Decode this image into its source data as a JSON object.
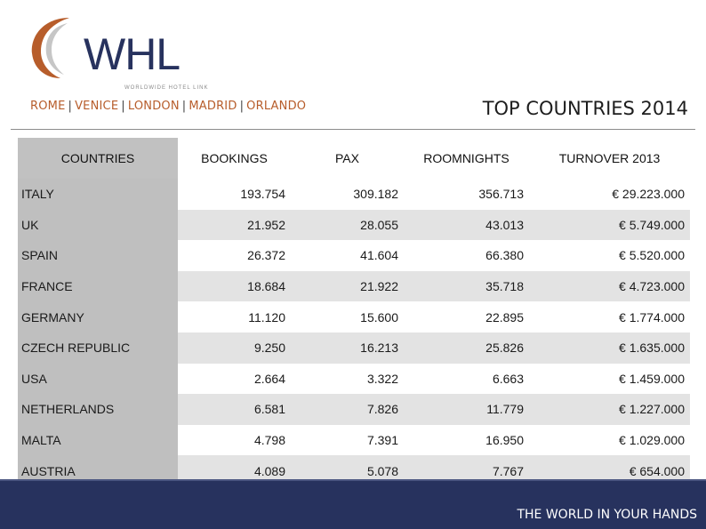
{
  "brand": {
    "logo_text": "WHL",
    "tagline": "WORLDWIDE HOTEL LINK",
    "arc_color": "#b75d2b",
    "navy": "#27325e"
  },
  "cities": [
    "ROME",
    "VENICE",
    "LONDON",
    "MADRID",
    "ORLANDO"
  ],
  "title": "TOP COUNTRIES 2014",
  "table": {
    "headers": {
      "country": "COUNTRIES",
      "bookings": "BOOKINGS",
      "pax": "PAX",
      "roomnights": "ROOMNIGHTS",
      "turnover": "TURNOVER 2013"
    },
    "rows": [
      {
        "country": "ITALY",
        "bookings": "193.754",
        "pax": "309.182",
        "roomnights": "356.713",
        "turnover": "€ 29.223.000"
      },
      {
        "country": "UK",
        "bookings": "21.952",
        "pax": "28.055",
        "roomnights": "43.013",
        "turnover": "€ 5.749.000"
      },
      {
        "country": "SPAIN",
        "bookings": "26.372",
        "pax": "41.604",
        "roomnights": "66.380",
        "turnover": "€ 5.520.000"
      },
      {
        "country": "FRANCE",
        "bookings": "18.684",
        "pax": "21.922",
        "roomnights": "35.718",
        "turnover": "€ 4.723.000"
      },
      {
        "country": "GERMANY",
        "bookings": "11.120",
        "pax": "15.600",
        "roomnights": "22.895",
        "turnover": "€ 1.774.000"
      },
      {
        "country": "CZECH REPUBLIC",
        "bookings": "9.250",
        "pax": "16.213",
        "roomnights": "25.826",
        "turnover": "€ 1.635.000"
      },
      {
        "country": "USA",
        "bookings": "2.664",
        "pax": "3.322",
        "roomnights": "6.663",
        "turnover": "€ 1.459.000"
      },
      {
        "country": "NETHERLANDS",
        "bookings": "6.581",
        "pax": "7.826",
        "roomnights": "11.779",
        "turnover": "€ 1.227.000"
      },
      {
        "country": "MALTA",
        "bookings": "4.798",
        "pax": "7.391",
        "roomnights": "16.950",
        "turnover": "€ 1.029.000"
      },
      {
        "country": "AUSTRIA",
        "bookings": "4.089",
        "pax": "5.078",
        "roomnights": "7.767",
        "turnover": "€  654.000"
      }
    ]
  },
  "footer": {
    "slogan": "THE WORLD IN YOUR HANDS"
  }
}
